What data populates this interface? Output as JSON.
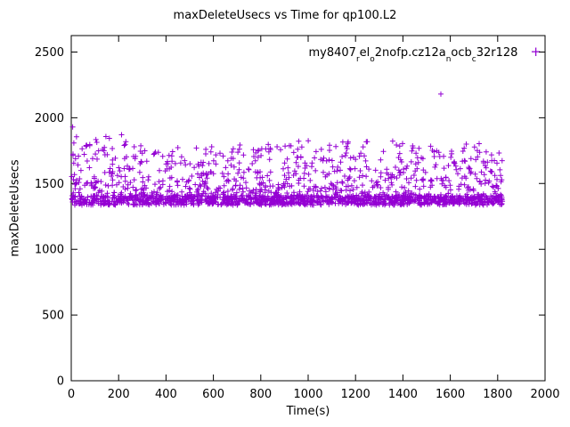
{
  "title": "maxDeleteUsecs vs Time for qp100.L2",
  "xlabel": "Time(s)",
  "ylabel": "maxDeleteUsecs",
  "legend": {
    "series_name": "my8407_rel_o2nofp.cz12a_nocb_c32r128",
    "parts": [
      {
        "text": "my8407"
      },
      {
        "text": "r",
        "sub": true
      },
      {
        "text": "el"
      },
      {
        "text": "o",
        "sub": true
      },
      {
        "text": "2nofp.cz12a"
      },
      {
        "text": "n",
        "sub": true
      },
      {
        "text": "ocb"
      },
      {
        "text": "c",
        "sub": true
      },
      {
        "text": "32r128"
      }
    ],
    "marker": "+"
  },
  "axes": {
    "x_ticks": [
      0,
      200,
      400,
      600,
      800,
      1000,
      1200,
      1400,
      1600,
      1800,
      2000
    ],
    "y_ticks": [
      0,
      500,
      1000,
      1500,
      2000,
      2500
    ],
    "xlim": [
      0,
      2000
    ],
    "ylim": [
      0,
      2625
    ],
    "grid": false,
    "border": true
  },
  "chart_data": {
    "type": "scatter",
    "title": "maxDeleteUsecs vs Time for qp100.L2",
    "xlabel": "Time(s)",
    "ylabel": "maxDeleteUsecs",
    "xlim": [
      0,
      2000
    ],
    "ylim": [
      0,
      2625
    ],
    "legend_position": "top-right",
    "series_name": "my8407_rel_o2nofp.cz12a_nocb_c32r128",
    "marker": "plus",
    "color": "#9400D3",
    "n_points": 1900,
    "seed": 1337,
    "x_range": [
      2,
      1820
    ],
    "y_dense_band": [
      1336,
      1408
    ],
    "y_typical_max": 1800,
    "spread_amplitude": 430,
    "early_x_high_bias_before": 300,
    "outliers": [
      [
        1560,
        2180
      ],
      [
        6,
        1930
      ]
    ]
  }
}
